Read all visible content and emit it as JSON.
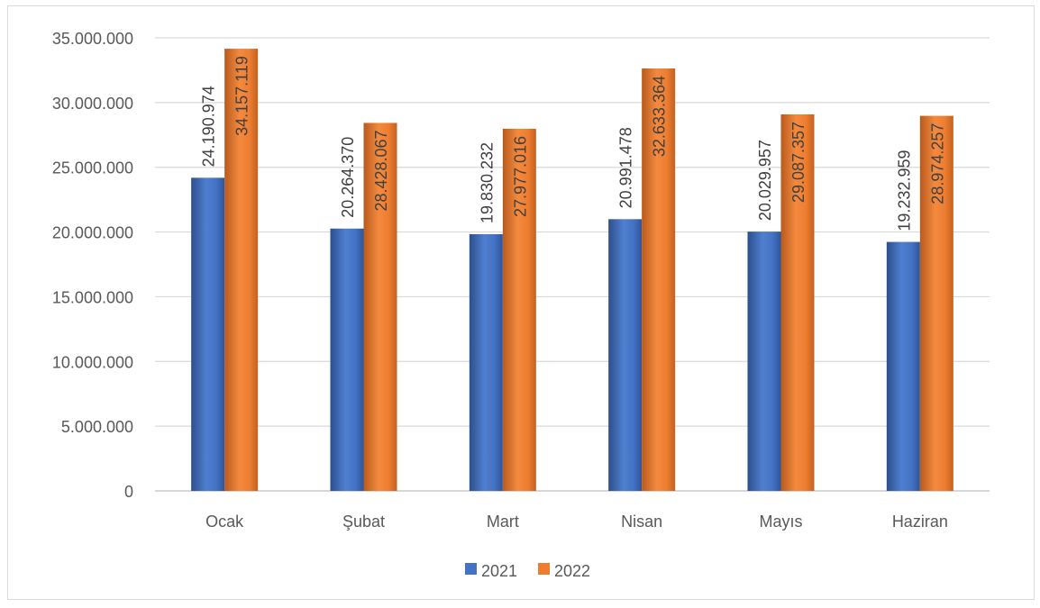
{
  "chart_data": {
    "type": "bar",
    "categories": [
      "Ocak",
      "Şubat",
      "Mart",
      "Nisan",
      "Mayıs",
      "Haziran"
    ],
    "series": [
      {
        "name": "2021",
        "color": "#4472C4",
        "values": [
          24190974,
          20264370,
          19830232,
          20991478,
          20029957,
          19232959
        ],
        "labels": [
          "24.190.974",
          "20.264.370",
          "19.830.232",
          "20.991.478",
          "20.029.957",
          "19.232.959"
        ]
      },
      {
        "name": "2022",
        "color": "#ED7D31",
        "values": [
          34157119,
          28428067,
          27977016,
          32633364,
          29087357,
          28974257
        ],
        "labels": [
          "34.157.119",
          "28.428.067",
          "27.977.016",
          "32.633.364",
          "29.087.357",
          "28.974.257"
        ]
      }
    ],
    "ylim": [
      0,
      35000000
    ],
    "yticks": [
      0,
      5000000,
      10000000,
      15000000,
      20000000,
      25000000,
      30000000,
      35000000
    ],
    "ytick_labels": [
      "0",
      "5.000.000",
      "10.000.000",
      "15.000.000",
      "20.000.000",
      "25.000.000",
      "30.000.000",
      "35.000.000"
    ],
    "grid": true,
    "legend_position": "bottom",
    "title": "",
    "xlabel": "",
    "ylabel": ""
  }
}
